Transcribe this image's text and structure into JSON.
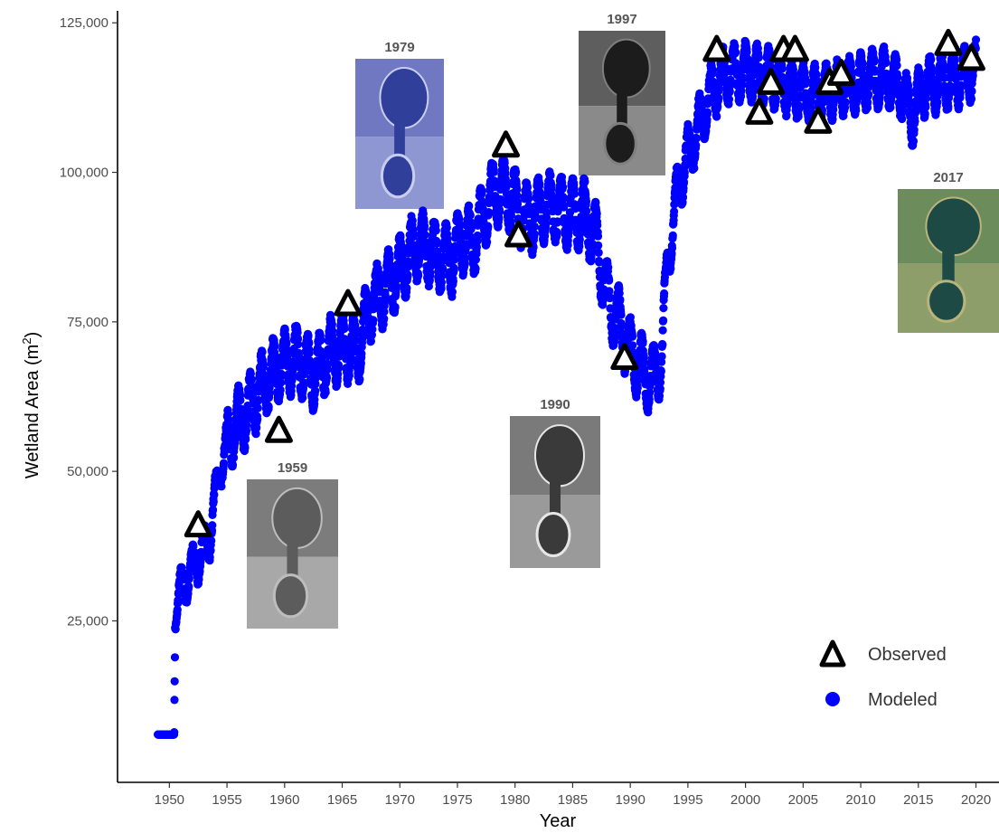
{
  "chart_data": {
    "type": "scatter",
    "xlabel": "Year",
    "ylabel": "Wetland Area (m",
    "ylabel_sup": "2",
    "ylabel_end": ")",
    "xlim": [
      1945.5,
      2022
    ],
    "ylim": [
      -2000,
      127000
    ],
    "x_ticks": [
      1950,
      1955,
      1960,
      1965,
      1970,
      1975,
      1980,
      1985,
      1990,
      1995,
      2000,
      2005,
      2010,
      2015,
      2020
    ],
    "y_ticks": [
      25000,
      50000,
      75000,
      100000,
      125000
    ],
    "y_tick_labels": [
      "25,000",
      "50,000",
      "75,000",
      "100,000",
      "125,000"
    ],
    "grid": false,
    "legend_position": "bottom-right",
    "series": [
      {
        "name": "Observed",
        "marker": "triangle-open",
        "color": "#000000",
        "points": [
          [
            1952.5,
            41000
          ],
          [
            1959.5,
            56800
          ],
          [
            1965.5,
            78000
          ],
          [
            1979.2,
            104500
          ],
          [
            1980.3,
            89500
          ],
          [
            1989.5,
            69000
          ],
          [
            1997.5,
            120500
          ],
          [
            2001.2,
            110000
          ],
          [
            2002.2,
            115000
          ],
          [
            2003.3,
            120500
          ],
          [
            2004.3,
            120500
          ],
          [
            2006.3,
            108500
          ],
          [
            2007.3,
            115000
          ],
          [
            2008.3,
            116500
          ],
          [
            2017.6,
            121500
          ],
          [
            2019.6,
            119000
          ]
        ]
      },
      {
        "name": "Modeled",
        "marker": "circle",
        "color": "#0000ff",
        "anchors": [
          [
            1949.0,
            6000
          ],
          [
            1950.4,
            6000
          ],
          [
            1950.5,
            27000
          ],
          [
            1951.2,
            31000
          ],
          [
            1952.4,
            35000
          ],
          [
            1953.5,
            39000
          ],
          [
            1954.4,
            51000
          ],
          [
            1955.5,
            57000
          ],
          [
            1956.8,
            60000
          ],
          [
            1958.0,
            64000
          ],
          [
            1959.3,
            67000
          ],
          [
            1961.0,
            69000
          ],
          [
            1962.5,
            66000
          ],
          [
            1964.0,
            70000
          ],
          [
            1965.3,
            71000
          ],
          [
            1966.3,
            70000
          ],
          [
            1967.5,
            78000
          ],
          [
            1969.0,
            81000
          ],
          [
            1970.5,
            85000
          ],
          [
            1971.5,
            88000
          ],
          [
            1973.3,
            86000
          ],
          [
            1974.5,
            85000
          ],
          [
            1975.3,
            89000
          ],
          [
            1976.3,
            88000
          ],
          [
            1977.3,
            93000
          ],
          [
            1978.3,
            97000
          ],
          [
            1979.2,
            97000
          ],
          [
            1980.2,
            94000
          ],
          [
            1981.2,
            92000
          ],
          [
            1982.5,
            94000
          ],
          [
            1983.5,
            94000
          ],
          [
            1984.5,
            93000
          ],
          [
            1986.0,
            93000
          ],
          [
            1987.0,
            89000
          ],
          [
            1988.0,
            79000
          ],
          [
            1989.0,
            75000
          ],
          [
            1990.0,
            70000
          ],
          [
            1991.0,
            67000
          ],
          [
            1992.0,
            65000
          ],
          [
            1992.8,
            70000
          ],
          [
            1993.2,
            85000
          ],
          [
            1994.2,
            98000
          ],
          [
            1995.2,
            104000
          ],
          [
            1996.0,
            108000
          ],
          [
            1997.0,
            113000
          ],
          [
            1998.0,
            116000
          ],
          [
            2000.0,
            117000
          ],
          [
            2002.0,
            116000
          ],
          [
            2004.0,
            114000
          ],
          [
            2006.0,
            113000
          ],
          [
            2008.0,
            114000
          ],
          [
            2010.0,
            115000
          ],
          [
            2012.0,
            116000
          ],
          [
            2013.5,
            114000
          ],
          [
            2014.5,
            109000
          ],
          [
            2015.2,
            114000
          ],
          [
            2017.0,
            115000
          ],
          [
            2019.0,
            116000
          ],
          [
            2020.0,
            117000
          ]
        ]
      }
    ],
    "thumbnails": [
      {
        "label": "1959",
        "year": 1959,
        "style": "gray-light"
      },
      {
        "label": "1979",
        "year": 1979,
        "style": "blue"
      },
      {
        "label": "1990",
        "year": 1990,
        "style": "gray-mid"
      },
      {
        "label": "1997",
        "year": 1997,
        "style": "gray-dark"
      },
      {
        "label": "2017",
        "year": 2017,
        "style": "color"
      }
    ]
  }
}
